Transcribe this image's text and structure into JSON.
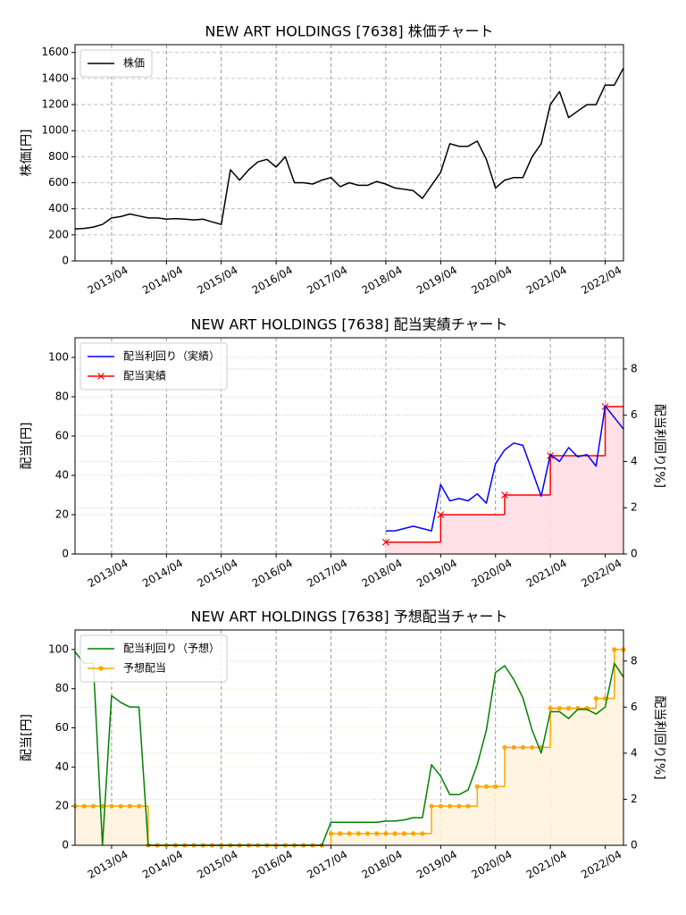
{
  "chart_data": [
    {
      "type": "line",
      "title": "NEW ART HOLDINGS [7638]  株価チャート",
      "ylabel": "株価[円]",
      "x": [
        "2012/08",
        "2012/10",
        "2012/12",
        "2013/02",
        "2013/04",
        "2013/06",
        "2013/08",
        "2013/10",
        "2013/12",
        "2014/02",
        "2014/04",
        "2014/06",
        "2014/08",
        "2014/10",
        "2014/12",
        "2015/02",
        "2015/04",
        "2015/06",
        "2015/08",
        "2015/10",
        "2015/12",
        "2016/02",
        "2016/04",
        "2016/06",
        "2016/08",
        "2016/10",
        "2016/12",
        "2017/02",
        "2017/04",
        "2017/06",
        "2017/08",
        "2017/10",
        "2017/12",
        "2018/02",
        "2018/04",
        "2018/06",
        "2018/08",
        "2018/10",
        "2018/12",
        "2019/02",
        "2019/04",
        "2019/06",
        "2019/08",
        "2019/10",
        "2019/12",
        "2020/02",
        "2020/04",
        "2020/06",
        "2020/08",
        "2020/10",
        "2020/12",
        "2021/02",
        "2021/04",
        "2021/06",
        "2021/08",
        "2021/10",
        "2021/12",
        "2022/02",
        "2022/04",
        "2022/06",
        "2022/08"
      ],
      "xlim": [
        "2012/08",
        "2022/08"
      ],
      "xticks": [
        "2013/04",
        "2014/04",
        "2015/04",
        "2016/04",
        "2017/04",
        "2018/04",
        "2019/04",
        "2020/04",
        "2021/04",
        "2022/04"
      ],
      "ylim": [
        0,
        1660
      ],
      "yticks": [
        0,
        200,
        400,
        600,
        800,
        1000,
        1200,
        1400,
        1600
      ],
      "grid": true,
      "legend": "upper left",
      "series": [
        {
          "name": "株価",
          "color": "#000000",
          "values": [
            245,
            250,
            260,
            280,
            330,
            340,
            360,
            345,
            330,
            330,
            320,
            325,
            320,
            315,
            320,
            300,
            280,
            700,
            620,
            700,
            760,
            780,
            720,
            800,
            600,
            600,
            590,
            620,
            640,
            570,
            600,
            580,
            580,
            610,
            590,
            560,
            550,
            540,
            480,
            580,
            680,
            900,
            880,
            880,
            920,
            780,
            560,
            620,
            640,
            640,
            800,
            900,
            1200,
            1300,
            1100,
            1150,
            1200,
            1200,
            1350,
            1350,
            1480
          ]
        }
      ]
    },
    {
      "type": "line",
      "title": "NEW ART HOLDINGS [7638]  配当実績チャート",
      "ylabel": "配当[円]",
      "y2label": "配当利回り[%]",
      "xlim": [
        "2012/08",
        "2022/08"
      ],
      "xticks": [
        "2013/04",
        "2014/04",
        "2015/04",
        "2016/04",
        "2017/04",
        "2018/04",
        "2019/04",
        "2020/04",
        "2021/04",
        "2022/04"
      ],
      "ylim": [
        0,
        110
      ],
      "yticks": [
        0,
        20,
        40,
        60,
        80,
        100
      ],
      "y2lim": [
        0,
        9.35
      ],
      "y2ticks": [
        0,
        2,
        4,
        6,
        8
      ],
      "grid": true,
      "legend": "upper left",
      "series": [
        {
          "name": "配当利回り（実績）",
          "color": "#0000ff",
          "axis": "y2",
          "x": [
            "2018/04",
            "2018/06",
            "2018/08",
            "2018/10",
            "2018/12",
            "2019/02",
            "2019/04",
            "2019/06",
            "2019/08",
            "2019/10",
            "2019/12",
            "2020/02",
            "2020/04",
            "2020/06",
            "2020/08",
            "2020/10",
            "2020/12",
            "2021/02",
            "2021/04",
            "2021/06",
            "2021/08",
            "2021/10",
            "2021/12",
            "2022/02",
            "2022/04",
            "2022/06",
            "2022/08"
          ],
          "values": [
            1.0,
            1.0,
            1.1,
            1.2,
            1.1,
            1.0,
            3.0,
            2.3,
            2.4,
            2.3,
            2.6,
            2.2,
            3.9,
            4.5,
            4.8,
            4.7,
            3.6,
            2.5,
            4.3,
            4.0,
            4.6,
            4.2,
            4.3,
            3.8,
            6.4,
            5.9,
            5.4
          ]
        },
        {
          "name": "配当実績",
          "color": "#ff0000",
          "step": true,
          "marker": "x",
          "fill": "#ffe0e6",
          "x": [
            "2018/04",
            "2019/04",
            "2020/06",
            "2021/04",
            "2022/04"
          ],
          "values": [
            6,
            20,
            30,
            50,
            75
          ]
        }
      ]
    },
    {
      "type": "line",
      "title": "NEW ART HOLDINGS [7638]  予想配当チャート",
      "ylabel": "配当[円]",
      "y2label": "配当利回り[%]",
      "x": [
        "2012/08",
        "2012/10",
        "2012/12",
        "2013/02",
        "2013/04",
        "2013/06",
        "2013/08",
        "2013/10",
        "2013/12",
        "2014/02",
        "2014/04",
        "2014/06",
        "2014/08",
        "2014/10",
        "2014/12",
        "2015/02",
        "2015/04",
        "2015/06",
        "2015/08",
        "2015/10",
        "2015/12",
        "2016/02",
        "2016/04",
        "2016/06",
        "2016/08",
        "2016/10",
        "2016/12",
        "2017/02",
        "2017/04",
        "2017/06",
        "2017/08",
        "2017/10",
        "2017/12",
        "2018/02",
        "2018/04",
        "2018/06",
        "2018/08",
        "2018/10",
        "2018/12",
        "2019/02",
        "2019/04",
        "2019/06",
        "2019/08",
        "2019/10",
        "2019/12",
        "2020/02",
        "2020/04",
        "2020/06",
        "2020/08",
        "2020/10",
        "2020/12",
        "2021/02",
        "2021/04",
        "2021/06",
        "2021/08",
        "2021/10",
        "2021/12",
        "2022/02",
        "2022/04",
        "2022/06",
        "2022/08"
      ],
      "xlim": [
        "2012/08",
        "2022/08"
      ],
      "xticks": [
        "2013/04",
        "2014/04",
        "2015/04",
        "2016/04",
        "2017/04",
        "2018/04",
        "2019/04",
        "2020/04",
        "2021/04",
        "2022/04"
      ],
      "ylim": [
        0,
        110
      ],
      "yticks": [
        0,
        20,
        40,
        60,
        80,
        100
      ],
      "y2lim": [
        0,
        9.35
      ],
      "y2ticks": [
        0,
        2,
        4,
        6,
        8
      ],
      "grid": true,
      "legend": "upper left",
      "series": [
        {
          "name": "配当利回り（予想）",
          "color": "#008000",
          "axis": "y2",
          "values": [
            8.4,
            7.9,
            7.9,
            0,
            6.5,
            6.2,
            6.0,
            6.0,
            0,
            0,
            0,
            0,
            0,
            0,
            0,
            0,
            0,
            0,
            0,
            0,
            0,
            0,
            0,
            0,
            0,
            0,
            0,
            0,
            1.0,
            1.0,
            1.0,
            1.0,
            1.0,
            1.0,
            1.05,
            1.05,
            1.1,
            1.2,
            1.2,
            3.5,
            3.0,
            2.2,
            2.2,
            2.4,
            3.5,
            5.0,
            7.5,
            7.8,
            7.2,
            6.4,
            5.0,
            4.0,
            5.8,
            5.8,
            5.5,
            5.9,
            5.9,
            5.7,
            6.0,
            7.9,
            7.3
          ]
        },
        {
          "name": "予想配当",
          "color": "#ffa500",
          "step": true,
          "marker": "o",
          "fill": "#fff4e0",
          "values": [
            20,
            20,
            20,
            20,
            20,
            20,
            20,
            20,
            0,
            0,
            0,
            0,
            0,
            0,
            0,
            0,
            0,
            0,
            0,
            0,
            0,
            0,
            0,
            0,
            0,
            0,
            0,
            0,
            6,
            6,
            6,
            6,
            6,
            6,
            6,
            6,
            6,
            6,
            6,
            20,
            20,
            20,
            20,
            20,
            30,
            30,
            30,
            50,
            50,
            50,
            50,
            50,
            70,
            70,
            70,
            70,
            70,
            75,
            75,
            100,
            100
          ]
        }
      ]
    }
  ]
}
